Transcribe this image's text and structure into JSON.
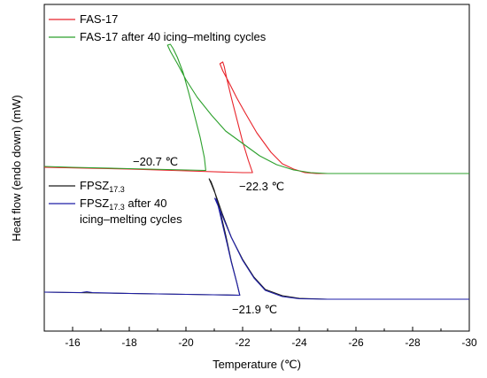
{
  "chart_data": {
    "type": "line",
    "title": "",
    "xlabel": "Temperature (℃)",
    "ylabel": "Heat flow (endo down) (mW)",
    "xlim": [
      -15,
      -30
    ],
    "x_ticks": [
      -16,
      -18,
      -20,
      -22,
      -24,
      -26,
      -28,
      -30
    ],
    "x_tick_labels": [
      "-16",
      "-18",
      "-20",
      "-22",
      "-24",
      "-26",
      "-28",
      "-30"
    ],
    "y_ticks_shown": false,
    "grid": false,
    "legends": [
      {
        "placement": "top-left",
        "entries": [
          {
            "series": 0,
            "label": "FAS-17"
          },
          {
            "series": 1,
            "label": "FAS-17 after 40 icing–melting cycles"
          }
        ]
      },
      {
        "placement": "center-left",
        "entries": [
          {
            "series": 2,
            "label_main": "FPSZ",
            "label_sub": "17.3",
            "label_rest": "",
            "label_line2": ""
          },
          {
            "series": 3,
            "label_main": "FPSZ",
            "label_sub": "17.3",
            "label_rest": " after 40",
            "label_line2": "icing–melting cycles"
          }
        ]
      }
    ],
    "annotations": [
      {
        "text": "−20.7 ℃",
        "x": -20.7
      },
      {
        "text": "−22.3 ℃",
        "x": -22.3
      },
      {
        "text": "−21.9 ℃",
        "x": -21.9
      }
    ],
    "series": [
      {
        "color": "#e8232a",
        "points": [
          [
            -15,
            189
          ],
          [
            -18,
            191
          ],
          [
            -20,
            193
          ],
          [
            -22,
            195
          ],
          [
            -22.35,
            195
          ],
          [
            -22.2,
            181
          ],
          [
            -22.0,
            160
          ],
          [
            -21.8,
            135
          ],
          [
            -21.6,
            110
          ],
          [
            -21.45,
            90
          ],
          [
            -21.35,
            75
          ],
          [
            -21.3,
            70
          ],
          [
            -21.2,
            72
          ],
          [
            -21.3,
            80
          ],
          [
            -21.5,
            92
          ],
          [
            -21.8,
            111
          ],
          [
            -22.1,
            128
          ],
          [
            -22.5,
            150
          ],
          [
            -23.0,
            172
          ],
          [
            -23.4,
            185
          ],
          [
            -23.8,
            191
          ],
          [
            -24.2,
            195
          ],
          [
            -24.6,
            196
          ],
          [
            -26,
            196
          ],
          [
            -28,
            196
          ],
          [
            -30,
            196
          ]
        ]
      },
      {
        "color": "#2ca02c",
        "points": [
          [
            -15,
            188
          ],
          [
            -16,
            189
          ],
          [
            -18,
            190.5
          ],
          [
            -20,
            192
          ],
          [
            -20.7,
            192.5
          ],
          [
            -20.65,
            178
          ],
          [
            -20.5,
            155
          ],
          [
            -20.3,
            130
          ],
          [
            -20.1,
            105
          ],
          [
            -19.9,
            82
          ],
          [
            -19.7,
            65
          ],
          [
            -19.55,
            55
          ],
          [
            -19.45,
            50
          ],
          [
            -19.35,
            51
          ],
          [
            -19.45,
            58
          ],
          [
            -19.7,
            72
          ],
          [
            -20.0,
            90
          ],
          [
            -20.4,
            110
          ],
          [
            -20.9,
            130
          ],
          [
            -21.4,
            148
          ],
          [
            -22.0,
            162
          ],
          [
            -22.6,
            176
          ],
          [
            -23.2,
            186
          ],
          [
            -23.8,
            192
          ],
          [
            -24.4,
            195
          ],
          [
            -25,
            196
          ],
          [
            -27,
            196
          ],
          [
            -30,
            196
          ]
        ]
      },
      {
        "color": "#1a1a1a",
        "points": [
          [
            -15,
            330
          ],
          [
            -17,
            331
          ],
          [
            -19,
            332
          ],
          [
            -21,
            333
          ],
          [
            -21.9,
            333.5
          ],
          [
            -21.8,
            320
          ],
          [
            -21.6,
            295
          ],
          [
            -21.4,
            265
          ],
          [
            -21.2,
            238
          ],
          [
            -21.0,
            215
          ],
          [
            -20.88,
            205
          ],
          [
            -20.82,
            202
          ],
          [
            -20.9,
            208
          ],
          [
            -21.05,
            220
          ],
          [
            -21.3,
            243
          ],
          [
            -21.6,
            268
          ],
          [
            -22.0,
            293
          ],
          [
            -22.4,
            313
          ],
          [
            -22.8,
            327
          ],
          [
            -23.4,
            334
          ],
          [
            -24.0,
            337
          ],
          [
            -25,
            338
          ],
          [
            -27,
            338
          ],
          [
            -30,
            338
          ]
        ]
      },
      {
        "color": "#1e1ea8",
        "points": [
          [
            -15,
            330
          ],
          [
            -16.3,
            330.5
          ],
          [
            -16.5,
            329.5
          ],
          [
            -16.7,
            330.5
          ],
          [
            -18,
            331.5
          ],
          [
            -20,
            332.5
          ],
          [
            -21.9,
            333.5
          ],
          [
            -21.8,
            320
          ],
          [
            -21.6,
            296
          ],
          [
            -21.45,
            275
          ],
          [
            -21.3,
            255
          ],
          [
            -21.17,
            237
          ],
          [
            -21.08,
            226
          ],
          [
            -21.02,
            224
          ],
          [
            -21.1,
            230
          ],
          [
            -21.3,
            245
          ],
          [
            -21.6,
            268
          ],
          [
            -22.0,
            294
          ],
          [
            -22.4,
            314
          ],
          [
            -22.8,
            328
          ],
          [
            -23.4,
            335
          ],
          [
            -24.0,
            337.5
          ],
          [
            -25,
            338
          ],
          [
            -27,
            338
          ],
          [
            -30,
            338
          ]
        ]
      }
    ]
  }
}
